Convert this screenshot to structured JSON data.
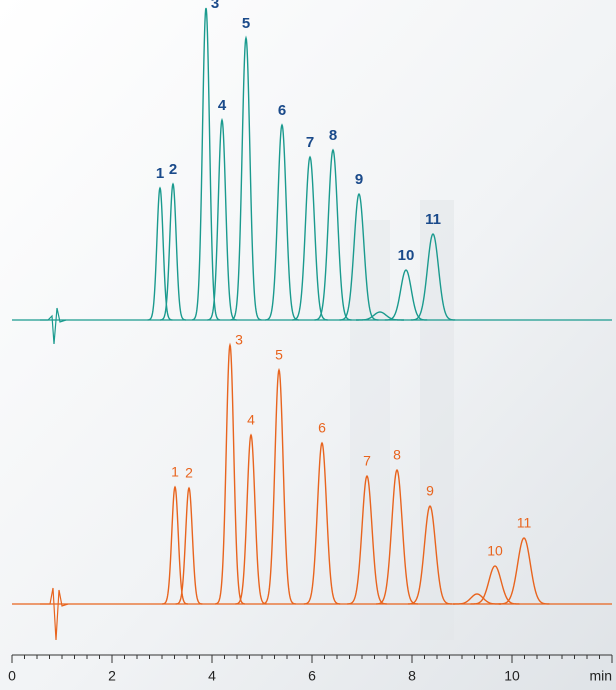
{
  "chart_data": {
    "type": "chromatogram",
    "xlim": [
      0,
      12
    ],
    "xticks": [
      0,
      2,
      4,
      6,
      8,
      10,
      {
        "value": 12,
        "label": "min"
      }
    ],
    "xminorticks": [
      0.25,
      0.5,
      0.75,
      1,
      1.25,
      1.5,
      1.75,
      2.25,
      2.5,
      2.75,
      3,
      3.25,
      3.5,
      3.75,
      4.25,
      4.5,
      4.75,
      5,
      5.25,
      5.5,
      5.75,
      6.25,
      6.5,
      6.75,
      7,
      7.25,
      7.5,
      7.75,
      8.25,
      8.5,
      8.75,
      9,
      9.25,
      9.5,
      9.75,
      10.25,
      10.5,
      10.75,
      11,
      11.25,
      11.5,
      11.75
    ],
    "series": [
      {
        "color": "#1a9a8e",
        "x": [
          2.96,
          3.22,
          3.88,
          4.2,
          4.68,
          5.4,
          5.96,
          6.42,
          6.94,
          7.36,
          7.88,
          8.42
        ],
        "values": [
          132,
          136,
          312,
          200,
          282,
          195,
          163,
          170,
          126,
          8,
          50,
          86
        ],
        "labels": [
          "1",
          "2",
          "3",
          "4",
          "5",
          "6",
          "7",
          "8",
          "9",
          null,
          "10",
          "11"
        ]
      },
      {
        "color": "#e8641e",
        "x": [
          3.26,
          3.54,
          4.36,
          4.78,
          5.34,
          6.2,
          7.1,
          7.7,
          8.36,
          9.3,
          9.66,
          10.24
        ],
        "values": [
          117,
          116,
          259,
          169,
          234,
          161,
          128,
          134,
          98,
          10,
          38,
          66
        ],
        "labels": [
          "1",
          "2",
          "3",
          "4",
          "5",
          "6",
          "7",
          "8",
          "9",
          null,
          "10",
          "11"
        ]
      }
    ]
  }
}
